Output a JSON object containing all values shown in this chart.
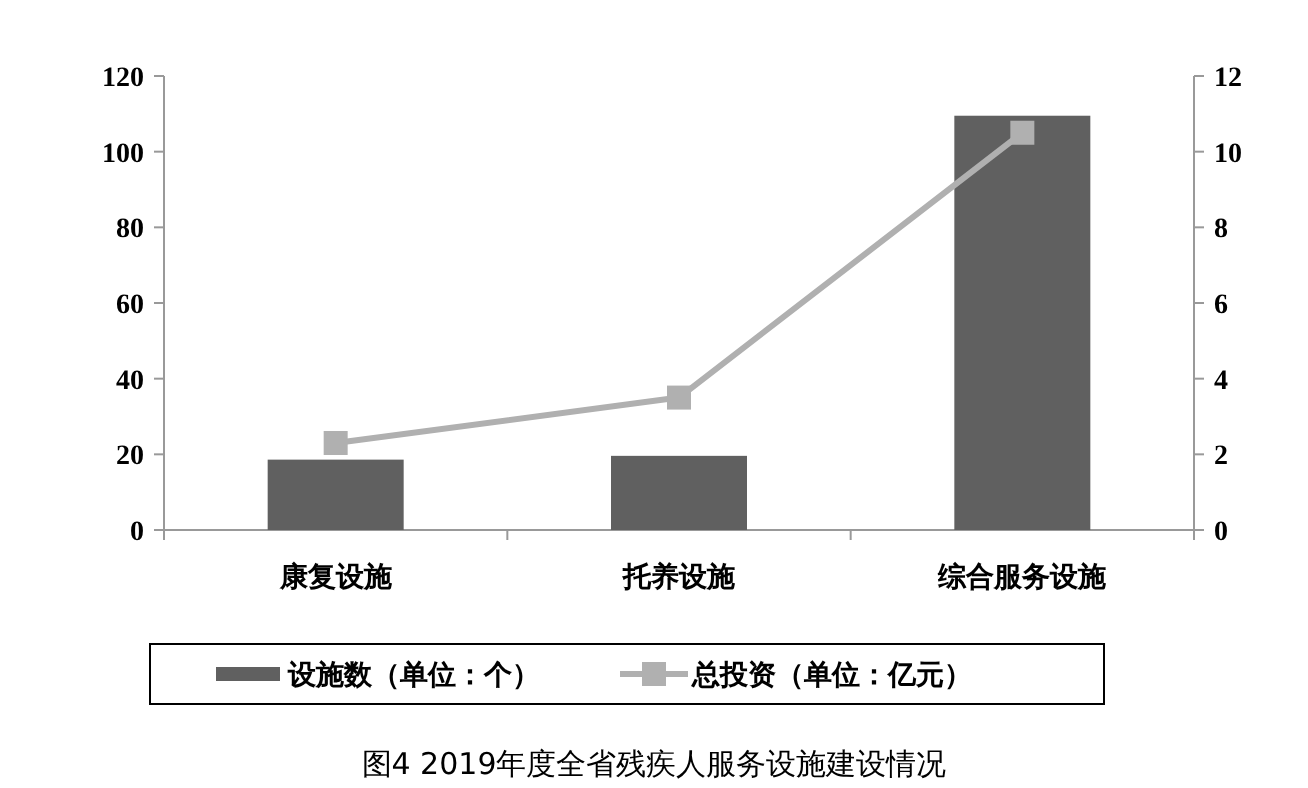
{
  "chart_data": {
    "type": "bar",
    "title": "图4   2019年度全省残疾人服务设施建设情况",
    "categories": [
      "康复设施",
      "托养设施",
      "综合服务设施"
    ],
    "series": [
      {
        "name": "设施数（单位：个）",
        "color": "#606060",
        "values": [
          18.6,
          19.6,
          109.5
        ]
      },
      {
        "name": "总投资（单位：亿元）",
        "type": "line",
        "axis": "y2",
        "color": "#b0b0b0",
        "marker": "square",
        "values": [
          2.3,
          3.5,
          10.5
        ]
      }
    ],
    "ylim": [
      0,
      120
    ],
    "yticks": [
      0,
      20,
      40,
      60,
      80,
      100,
      120
    ],
    "y2lim": [
      0,
      12
    ],
    "y2ticks": [
      0,
      2,
      4,
      6,
      8,
      10,
      12
    ],
    "grid": false,
    "legend": "bottom"
  }
}
